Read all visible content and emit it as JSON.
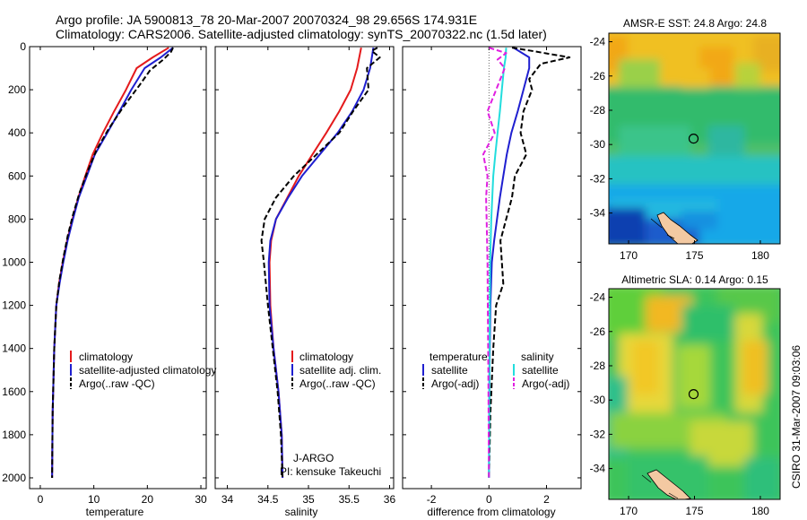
{
  "header": {
    "line1": "Argo profile: JA 5900813_78 20-Mar-2007 20070324_98 29.656S 174.931E",
    "line2": "Climatology: CARS2006. Satellite-adjusted climatology: synTS_20070322.nc (1.5d later)"
  },
  "side_note": "CSIRO 31-Mar-2007 09:03:06",
  "colors": {
    "climatology": "#e41a1c",
    "satellite": "#1f1fd0",
    "argo": "#000000",
    "cyan": "#22dddd",
    "magenta": "#e020e0"
  },
  "chart_data": [
    {
      "type": "line",
      "xlabel": "temperature",
      "xlim": [
        -2,
        31
      ],
      "ylim": [
        2050,
        0
      ],
      "xticks": [
        0,
        10,
        20,
        30
      ],
      "yticks": [
        0,
        200,
        400,
        600,
        800,
        1000,
        1200,
        1400,
        1600,
        1800,
        2000
      ],
      "legend": [
        "climatology",
        "satellite-adjusted climatology",
        "Argo(..raw -QC)"
      ],
      "legend_placement": "lower-right",
      "series": [
        {
          "name": "climatology",
          "color": "#e41a1c",
          "dash": "solid",
          "x": [
            24.0,
            21.0,
            18.0,
            16.0,
            13.8,
            11.7,
            9.8,
            8.4,
            7.1,
            6.0,
            5.0,
            4.2,
            3.5,
            3.0,
            2.6,
            2.3,
            2.2
          ],
          "y": [
            5,
            50,
            100,
            200,
            300,
            400,
            500,
            600,
            700,
            800,
            900,
            1000,
            1100,
            1200,
            1400,
            1700,
            2000
          ]
        },
        {
          "name": "satellite-adjusted climatology",
          "color": "#1f1fd0",
          "dash": "solid",
          "x": [
            24.8,
            22.5,
            19.5,
            17.0,
            14.8,
            12.5,
            10.2,
            8.7,
            7.2,
            6.1,
            5.1,
            4.3,
            3.6,
            3.0,
            2.6,
            2.3,
            2.2
          ],
          "y": [
            5,
            50,
            100,
            200,
            300,
            400,
            500,
            600,
            700,
            800,
            900,
            1000,
            1100,
            1200,
            1400,
            1700,
            2000
          ]
        },
        {
          "name": "Argo(..raw -QC)",
          "color": "#000000",
          "dash": "6,3",
          "x": [
            24.8,
            24.4,
            23.0,
            20.5,
            18.5,
            15.5,
            12.8,
            10.5,
            8.8,
            7.3,
            6.1,
            5.1,
            4.3,
            3.6,
            3.0,
            2.6,
            2.3,
            2.2
          ],
          "y": [
            5,
            25,
            60,
            110,
            180,
            280,
            380,
            480,
            580,
            680,
            780,
            880,
            980,
            1080,
            1200,
            1400,
            1700,
            2000
          ]
        }
      ]
    },
    {
      "type": "line",
      "xlabel": "salinity",
      "xlim": [
        33.85,
        36.05
      ],
      "ylim": [
        2050,
        0
      ],
      "xticks": [
        34,
        34.5,
        35,
        35.5,
        36
      ],
      "yticks": [
        0,
        200,
        400,
        600,
        800,
        1000,
        1200,
        1400,
        1600,
        1800,
        2000
      ],
      "legend": [
        "climatology",
        "satellite adj. clim.",
        "Argo(..raw -QC)"
      ],
      "legend_placement": "lower-right",
      "annotation": [
        "J-ARGO",
        "PI: kensuke Takeuchi"
      ],
      "series": [
        {
          "name": "climatology",
          "color": "#e41a1c",
          "dash": "solid",
          "x": [
            35.65,
            35.6,
            35.52,
            35.38,
            35.22,
            35.05,
            34.88,
            34.74,
            34.6,
            34.54,
            34.52,
            34.53,
            34.57,
            34.63,
            34.67,
            34.68
          ],
          "y": [
            5,
            100,
            200,
            300,
            400,
            500,
            600,
            700,
            800,
            900,
            1000,
            1200,
            1400,
            1600,
            1800,
            2000
          ]
        },
        {
          "name": "satellite adj. clim.",
          "color": "#1f1fd0",
          "dash": "solid",
          "x": [
            35.8,
            35.76,
            35.68,
            35.54,
            35.36,
            35.14,
            34.92,
            34.75,
            34.6,
            34.53,
            34.51,
            34.52,
            34.57,
            34.63,
            34.67,
            34.68
          ],
          "y": [
            5,
            100,
            200,
            300,
            400,
            500,
            600,
            700,
            800,
            900,
            1000,
            1200,
            1400,
            1600,
            1800,
            2000
          ]
        },
        {
          "name": "Argo(..raw -QC)",
          "color": "#000000",
          "dash": "6,3",
          "x": [
            35.85,
            35.78,
            35.88,
            35.72,
            35.74,
            35.55,
            35.38,
            35.1,
            34.82,
            34.6,
            34.46,
            34.42,
            34.45,
            34.5,
            34.56,
            34.62,
            34.66,
            34.68
          ],
          "y": [
            5,
            20,
            50,
            100,
            200,
            300,
            400,
            500,
            600,
            700,
            800,
            900,
            1000,
            1200,
            1400,
            1600,
            1800,
            2000
          ]
        }
      ]
    },
    {
      "type": "line",
      "xlabel": "difference from climatology",
      "xlim": [
        -3.0,
        3.2
      ],
      "ylim": [
        2050,
        0
      ],
      "xticks": [
        -2,
        0,
        2
      ],
      "yticks": [
        0,
        200,
        400,
        600,
        800,
        1000,
        1200,
        1400,
        1600,
        1800,
        2000
      ],
      "legend_groups": [
        {
          "title": "temperature",
          "items": [
            "satellite",
            "Argo(-adj)"
          ]
        },
        {
          "title": "salinity",
          "items": [
            "satellite",
            "Argo(-adj)"
          ]
        }
      ],
      "legend_placement": "lower-center",
      "series": [
        {
          "name": "temperature satellite",
          "color": "#1f1fd0",
          "dash": "solid",
          "x": [
            0.85,
            1.4,
            1.4,
            1.2,
            1.0,
            0.78,
            0.62,
            0.5,
            0.38,
            0.28,
            0.18,
            0.1,
            0.05,
            0.02,
            0.0
          ],
          "y": [
            5,
            50,
            100,
            200,
            300,
            400,
            500,
            600,
            700,
            800,
            900,
            1000,
            1200,
            1500,
            2000
          ]
        },
        {
          "name": "temperature Argo(-adj)",
          "color": "#000000",
          "dash": "6,3",
          "x": [
            0.8,
            1.5,
            2.8,
            1.8,
            1.4,
            1.5,
            1.2,
            1.1,
            1.3,
            0.9,
            0.8,
            0.6,
            0.4,
            0.5,
            0.25,
            0.15,
            0.05,
            0.0
          ],
          "y": [
            5,
            20,
            50,
            80,
            150,
            200,
            300,
            400,
            500,
            600,
            700,
            800,
            900,
            1100,
            1200,
            1400,
            1700,
            2000
          ]
        },
        {
          "name": "salinity satellite",
          "color": "#22dddd",
          "dash": "solid",
          "x": [
            0.6,
            0.58,
            0.52,
            0.45,
            0.38,
            0.3,
            0.22,
            0.15,
            0.08,
            0.04,
            0.02,
            0.0
          ],
          "y": [
            5,
            50,
            100,
            200,
            300,
            400,
            500,
            600,
            800,
            1000,
            1400,
            2000
          ]
        },
        {
          "name": "salinity Argo(-adj)",
          "color": "#e020e0",
          "dash": "6,3",
          "x": [
            0.0,
            0.6,
            0.3,
            0.55,
            0.25,
            -0.05,
            0.2,
            -0.2,
            -0.05,
            -0.1,
            -0.08,
            -0.05,
            -0.04,
            -0.02,
            0.0
          ],
          "y": [
            5,
            30,
            60,
            100,
            200,
            300,
            400,
            500,
            600,
            700,
            800,
            1000,
            1200,
            1500,
            2000
          ]
        }
      ]
    },
    {
      "type": "heatmap",
      "title": "AMSR-E SST: 24.8 Argo: 24.8",
      "xticks": [
        170,
        175,
        180
      ],
      "yticks": [
        -24,
        -26,
        -28,
        -30,
        -32,
        -34
      ],
      "xlim": [
        168.5,
        181.5
      ],
      "ylim": [
        -35.8,
        -23.5
      ],
      "marker": {
        "x": 174.931,
        "y": -29.656
      }
    },
    {
      "type": "heatmap",
      "title": "Altimetric SLA: 0.14 Argo: 0.15",
      "xticks": [
        170,
        175,
        180
      ],
      "yticks": [
        -24,
        -26,
        -28,
        -30,
        -32,
        -34
      ],
      "xlim": [
        168.5,
        181.5
      ],
      "ylim": [
        -35.8,
        -23.5
      ],
      "marker": {
        "x": 174.931,
        "y": -29.656
      }
    }
  ]
}
